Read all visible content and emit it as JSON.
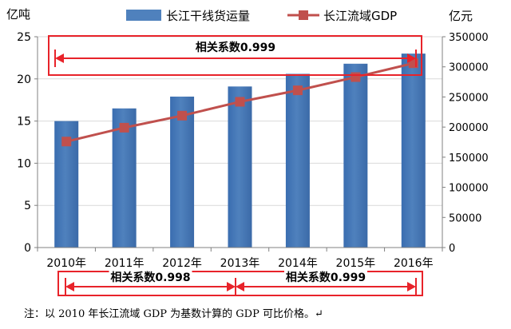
{
  "chart_data": {
    "type": "bar",
    "categories": [
      "2010年",
      "2011年",
      "2012年",
      "2013年",
      "2014年",
      "2015年",
      "2016年"
    ],
    "series": [
      {
        "name": "长江干线货运量",
        "kind": "bar",
        "axis": "left",
        "color": "#4f81bd",
        "values": [
          15.0,
          16.5,
          17.9,
          19.1,
          20.6,
          21.8,
          23.0
        ]
      },
      {
        "name": "长江流域GDP",
        "kind": "line",
        "axis": "right",
        "color": "#c0504d",
        "marker": "square",
        "values": [
          176000,
          199000,
          219000,
          242000,
          261000,
          283000,
          306000
        ]
      }
    ],
    "y_left": {
      "label": "亿吨",
      "ticks": [
        0,
        5,
        10,
        15,
        20,
        25
      ],
      "ylim": [
        0,
        25
      ]
    },
    "y_right": {
      "label": "亿元",
      "ticks": [
        "0",
        "50000",
        "100000",
        "150000",
        "200000",
        "250000",
        "300000",
        "350000"
      ],
      "ylim": [
        0,
        350000
      ]
    },
    "legend_position": "top",
    "annotations": [
      {
        "text": "相关系数0.999",
        "from": "2010年",
        "to": "2016年",
        "placement": "top"
      },
      {
        "text": "相关系数0.998",
        "from": "2010年",
        "to": "2013年",
        "placement": "bottom"
      },
      {
        "text": "相关系数0.999",
        "from": "2013年",
        "to": "2016年",
        "placement": "bottom"
      }
    ]
  },
  "note": "注：以 2010 年长江流域 GDP 为基数计算的 GDP 可比价格。↵"
}
